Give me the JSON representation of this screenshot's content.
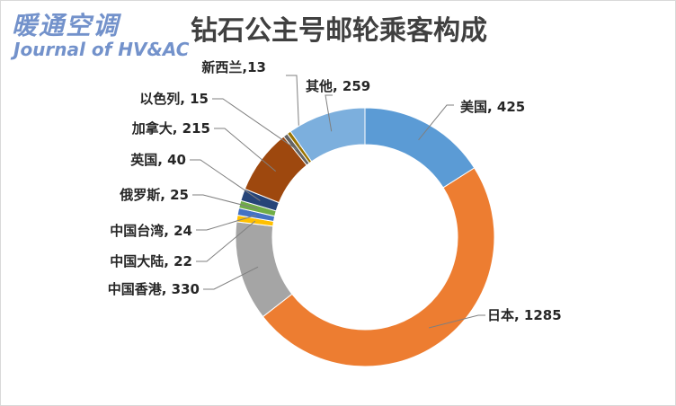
{
  "watermark": {
    "cn": "暖通空调",
    "en": "Journal of HV&AC"
  },
  "chart_data": {
    "type": "pie",
    "donut": true,
    "title": "钻石公主号邮轮乘客构成",
    "slices": [
      {
        "label": "美国",
        "value": 425,
        "color": "#5b9bd5"
      },
      {
        "label": "日本",
        "value": 1285,
        "color": "#ed7d31"
      },
      {
        "label": "中国香港",
        "value": 330,
        "color": "#a5a5a5"
      },
      {
        "label": "中国大陆",
        "value": 22,
        "color": "#ffc000"
      },
      {
        "label": "中国台湾",
        "value": 24,
        "color": "#4472c4"
      },
      {
        "label": "俄罗斯",
        "value": 25,
        "color": "#70ad47"
      },
      {
        "label": "英国",
        "value": 40,
        "color": "#264478"
      },
      {
        "label": "加拿大",
        "value": 215,
        "color": "#9e480e"
      },
      {
        "label": "以色列",
        "value": 15,
        "color": "#636363"
      },
      {
        "label": "新西兰",
        "value": 13,
        "color": "#997300"
      },
      {
        "label": "其他",
        "value": 259,
        "color": "#7cafdd"
      }
    ],
    "data_labels": [
      "美国, 425",
      "日本, 1285",
      "中国香港, 330",
      "中国大陆, 22",
      "中国台湾, 24",
      "俄罗斯, 25",
      "英国, 40",
      "加拿大, 215",
      "以色列, 15",
      "新西兰,13",
      "其他, 259"
    ]
  }
}
